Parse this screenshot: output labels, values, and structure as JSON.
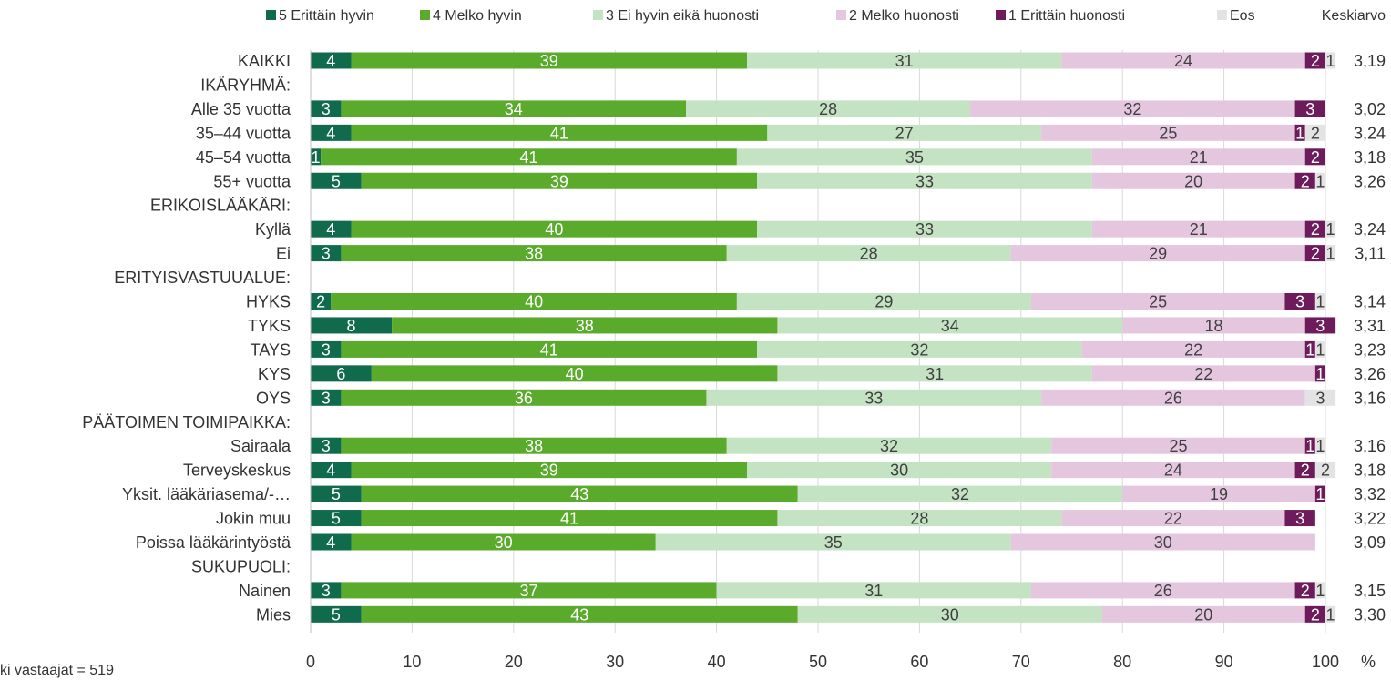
{
  "chart_data": {
    "type": "bar",
    "orientation": "horizontal",
    "stacked": true,
    "legend_position": "top",
    "grid": true,
    "xlim": [
      0,
      100
    ],
    "xticks": [
      "0",
      "10",
      "20",
      "30",
      "40",
      "50",
      "60",
      "70",
      "80",
      "90",
      "100"
    ],
    "x_unit": "%",
    "mean_header": "Keskiarvo",
    "series": [
      {
        "name": "5 Erittäin hyvin",
        "color": "#0f6b4c"
      },
      {
        "name": "4 Melko hyvin",
        "color": "#5aab2c"
      },
      {
        "name": "3 Ei hyvin eikä huonosti",
        "color": "#c4e3c3"
      },
      {
        "name": "2 Melko huonosti",
        "color": "#e4c7df"
      },
      {
        "name": "1 Erittäin huonosti",
        "color": "#6d1b5a"
      },
      {
        "name": "Eos",
        "color": "#e3e3e3"
      }
    ],
    "rows": [
      {
        "label": "KAIKKI",
        "values": [
          4,
          39,
          31,
          24,
          2,
          1
        ],
        "labels": [
          "4",
          "39",
          "31",
          "24",
          "2",
          "1"
        ],
        "mean": "3,19"
      },
      {
        "label": "IKÄRYHMÄ:",
        "header": true
      },
      {
        "label": "Alle 35 vuotta",
        "values": [
          3,
          34,
          28,
          32,
          3,
          0
        ],
        "labels": [
          "3",
          "34",
          "28",
          "32",
          "3",
          ""
        ],
        "mean": "3,02"
      },
      {
        "label": "35–44 vuotta",
        "values": [
          4,
          41,
          27,
          25,
          1,
          2
        ],
        "labels": [
          "4",
          "41",
          "27",
          "25",
          "1",
          "2"
        ],
        "mean": "3,24"
      },
      {
        "label": "45–54 vuotta",
        "values": [
          1,
          41,
          35,
          21,
          2,
          0
        ],
        "labels": [
          "1",
          "41",
          "35",
          "21",
          "2",
          ""
        ],
        "mean": "3,18"
      },
      {
        "label": "55+ vuotta",
        "values": [
          5,
          39,
          33,
          20,
          2,
          1
        ],
        "labels": [
          "5",
          "39",
          "33",
          "20",
          "2",
          "1"
        ],
        "mean": "3,26"
      },
      {
        "label": "ERIKOISLÄÄKÄRI:",
        "header": true
      },
      {
        "label": "Kyllä",
        "values": [
          4,
          40,
          33,
          21,
          2,
          1
        ],
        "labels": [
          "4",
          "40",
          "33",
          "21",
          "2",
          "1"
        ],
        "mean": "3,24"
      },
      {
        "label": "Ei",
        "values": [
          3,
          38,
          28,
          29,
          2,
          1
        ],
        "labels": [
          "3",
          "38",
          "28",
          "29",
          "2",
          "1"
        ],
        "mean": "3,11"
      },
      {
        "label": "ERITYISVASTUUALUE:",
        "header": true
      },
      {
        "label": "HYKS",
        "values": [
          2,
          40,
          29,
          25,
          3,
          1
        ],
        "labels": [
          "2",
          "40",
          "29",
          "25",
          "3",
          "1"
        ],
        "mean": "3,14"
      },
      {
        "label": "TYKS",
        "values": [
          8,
          38,
          34,
          18,
          3,
          0
        ],
        "labels": [
          "8",
          "38",
          "34",
          "18",
          "3",
          ""
        ],
        "mean": "3,31"
      },
      {
        "label": "TAYS",
        "values": [
          3,
          41,
          32,
          22,
          1,
          1
        ],
        "labels": [
          "3",
          "41",
          "32",
          "22",
          "1",
          "1"
        ],
        "mean": "3,23"
      },
      {
        "label": "KYS",
        "values": [
          6,
          40,
          31,
          22,
          1,
          0
        ],
        "labels": [
          "6",
          "40",
          "31",
          "22",
          "1",
          ""
        ],
        "mean": "3,26"
      },
      {
        "label": "OYS",
        "values": [
          3,
          36,
          33,
          26,
          0,
          3
        ],
        "labels": [
          "3",
          "36",
          "33",
          "26",
          "",
          "3"
        ],
        "mean": "3,16"
      },
      {
        "label": "PÄÄTOIMEN TOIMIPAIKKA:",
        "header": true
      },
      {
        "label": "Sairaala",
        "values": [
          3,
          38,
          32,
          25,
          1,
          1
        ],
        "labels": [
          "3",
          "38",
          "32",
          "25",
          "1",
          "1"
        ],
        "mean": "3,16"
      },
      {
        "label": "Terveyskeskus",
        "values": [
          4,
          39,
          30,
          24,
          2,
          2
        ],
        "labels": [
          "4",
          "39",
          "30",
          "24",
          "2",
          "2"
        ],
        "mean": "3,18"
      },
      {
        "label": "Yksit. lääkäriasema/-…",
        "values": [
          5,
          43,
          32,
          19,
          1,
          0
        ],
        "labels": [
          "5",
          "43",
          "32",
          "19",
          "1",
          ""
        ],
        "mean": "3,32"
      },
      {
        "label": "Jokin muu",
        "values": [
          5,
          41,
          28,
          22,
          3,
          0
        ],
        "labels": [
          "5",
          "41",
          "28",
          "22",
          "3",
          ""
        ],
        "mean": "3,22"
      },
      {
        "label": "Poissa lääkärintyöstä",
        "values": [
          4,
          30,
          35,
          30,
          0,
          0
        ],
        "labels": [
          "4",
          "30",
          "35",
          "30",
          "",
          ""
        ],
        "mean": "3,09"
      },
      {
        "label": "SUKUPUOLI:",
        "header": true
      },
      {
        "label": "Nainen",
        "values": [
          3,
          37,
          31,
          26,
          2,
          1
        ],
        "labels": [
          "3",
          "37",
          "31",
          "26",
          "2",
          "1"
        ],
        "mean": "3,15"
      },
      {
        "label": "Mies",
        "values": [
          5,
          43,
          30,
          20,
          2,
          1
        ],
        "labels": [
          "5",
          "43",
          "30",
          "20",
          "2",
          "1"
        ],
        "mean": "3,30"
      }
    ]
  },
  "footnote": "ki vastaajat =  519"
}
